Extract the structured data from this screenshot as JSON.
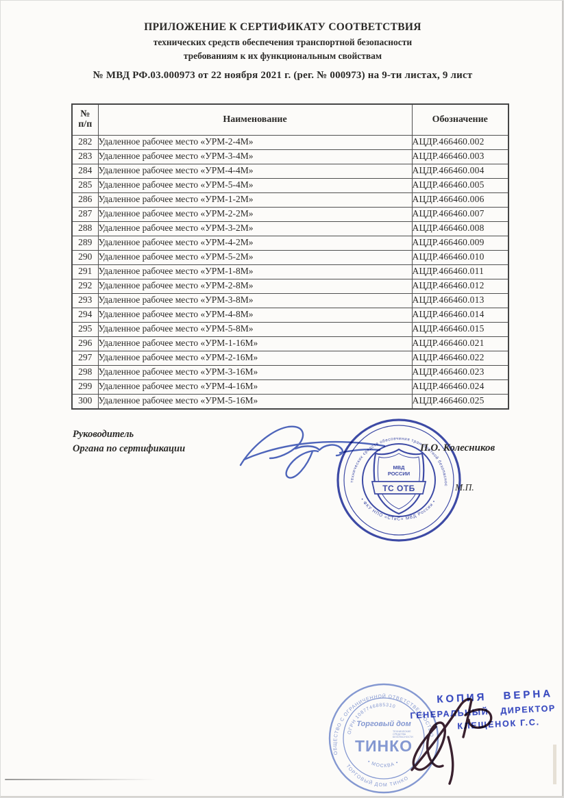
{
  "document": {
    "title_lines": [
      "ПРИЛОЖЕНИЕ К СЕРТИФИКАТУ СООТВЕТСТВИЯ",
      "технических средств обеспечения транспортной безопасности",
      "требованиям к их функциональным свойствам"
    ],
    "cert_number_line": "№ МВД РФ.03.000973 от 22 ноября 2021 г. (рег. № 000973) на 9-ти листах, 9 лист"
  },
  "table": {
    "header": {
      "num_line1": "№",
      "num_line2": "п/п",
      "name": "Наименование",
      "designation": "Обозначение"
    },
    "rows": [
      [
        "282",
        "Удаленное рабочее место «УРМ-2-4М»",
        "АЦДР.466460.002"
      ],
      [
        "283",
        "Удаленное рабочее место «УРМ-3-4М»",
        "АЦДР.466460.003"
      ],
      [
        "284",
        "Удаленное рабочее место «УРМ-4-4М»",
        "АЦДР.466460.004"
      ],
      [
        "285",
        "Удаленное рабочее место «УРМ-5-4М»",
        "АЦДР.466460.005"
      ],
      [
        "286",
        "Удаленное рабочее место «УРМ-1-2М»",
        "АЦДР.466460.006"
      ],
      [
        "287",
        "Удаленное рабочее место «УРМ-2-2М»",
        "АЦДР.466460.007"
      ],
      [
        "288",
        "Удаленное рабочее место «УРМ-3-2М»",
        "АЦДР.466460.008"
      ],
      [
        "289",
        "Удаленное рабочее место «УРМ-4-2М»",
        "АЦДР.466460.009"
      ],
      [
        "290",
        "Удаленное рабочее место «УРМ-5-2М»",
        "АЦДР.466460.010"
      ],
      [
        "291",
        "Удаленное рабочее место «УРМ-1-8М»",
        "АЦДР.466460.011"
      ],
      [
        "292",
        "Удаленное рабочее место «УРМ-2-8М»",
        "АЦДР.466460.012"
      ],
      [
        "293",
        "Удаленное рабочее место «УРМ-3-8М»",
        "АЦДР.466460.013"
      ],
      [
        "294",
        "Удаленное рабочее место «УРМ-4-8М»",
        "АЦДР.466460.014"
      ],
      [
        "295",
        "Удаленное рабочее место «УРМ-5-8М»",
        "АЦДР.466460.015"
      ],
      [
        "296",
        "Удаленное рабочее место «УРМ-1-16М»",
        "АЦДР.466460.021"
      ],
      [
        "297",
        "Удаленное рабочее место «УРМ-2-16М»",
        "АЦДР.466460.022"
      ],
      [
        "298",
        "Удаленное рабочее место «УРМ-3-16М»",
        "АЦДР.466460.023"
      ],
      [
        "299",
        "Удаленное рабочее место «УРМ-4-16М»",
        "АЦДР.466460.024"
      ],
      [
        "300",
        "Удаленное рабочее место «УРМ-5-16М»",
        "АЦДР.466460.025"
      ]
    ]
  },
  "signature_block": {
    "role_line1": "Руководитель",
    "role_line2": "Органа по сертификации",
    "signer_name": "П.О. Колесников",
    "seal_mark_label": "М.П."
  },
  "cert_stamp": {
    "color": "#2e3da3",
    "ring_text_top": "технических средств обеспечения транспортной безопасности МВД России",
    "ring_text_bottom": "• ФКУ НПО «СТиС» МВД России •",
    "shield_line1": "МВД",
    "shield_line2": "РОССИИ",
    "shield_banner": "ТС ОТБ"
  },
  "copy_stamp": {
    "color": "#3b4dc5",
    "line1": "КОПИЯ ВЕРНА",
    "line2": "ГЕНЕРАЛЬНЫЙ ДИРЕКТОР",
    "line3": "КЛЕЩЕНОК Г.С."
  },
  "org_stamp": {
    "color": "#7189cf",
    "outer_top": "ОБЩЕСТВО С ОГРАНИЧЕННОЙ ОТВЕТСТВЕННОСТЬЮ",
    "outer_bottom": "ТОРГОВЫЙ ДОМ ТИНКО",
    "inner_top": "ОГРН 1087746885310",
    "inner_bottom": "• МОСКВА •",
    "script_text": "Торговый дом",
    "logo_text": "ТИНКО",
    "tagline_lines": [
      "ТЕХНИЧЕСКИЕ",
      "СРЕДСТВА",
      "БЕЗОПАСНОСТИ"
    ]
  }
}
